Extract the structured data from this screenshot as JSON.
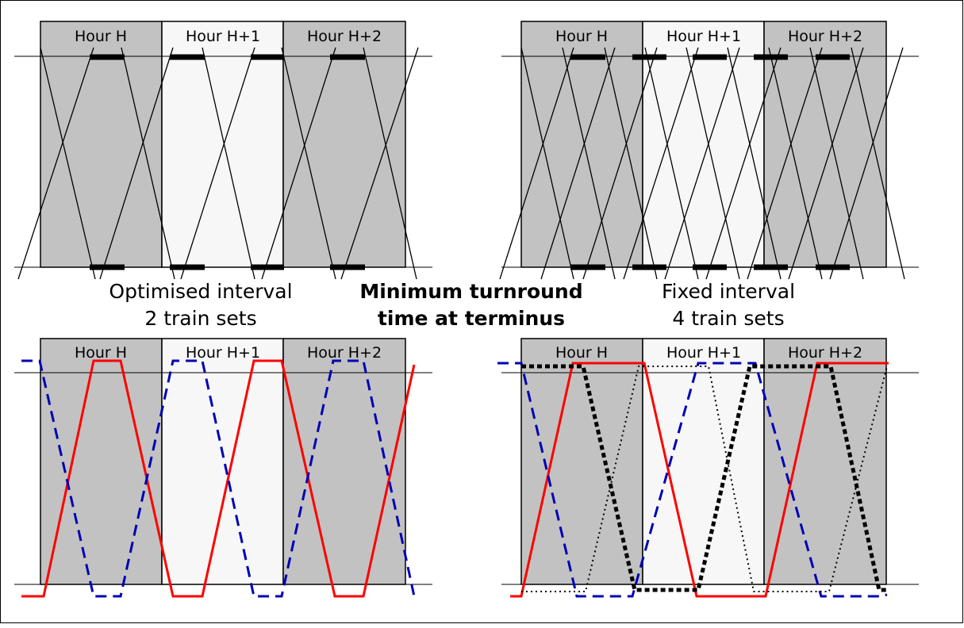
{
  "panels": [
    {
      "id": "top-left",
      "hours": [
        "Hour H",
        "Hour H+1",
        "Hour H+2"
      ]
    },
    {
      "id": "top-right",
      "hours": [
        "Hour H",
        "Hour H+1",
        "Hour H+2"
      ]
    },
    {
      "id": "bottom-left",
      "hours": [
        "Hour H",
        "Hour H+1",
        "Hour H+2"
      ]
    },
    {
      "id": "bottom-right",
      "hours": [
        "Hour H",
        "Hour H+1",
        "Hour H+2"
      ]
    }
  ],
  "captions": {
    "left_line1": "Optimised interval",
    "left_line2": "2 train sets",
    "center_line1": "Minimum turnround",
    "center_line2": "time at terminus",
    "right_line1": "Fixed interval",
    "right_line2": "4 train sets"
  },
  "colors": {
    "hour_dark": "#c2c2c2",
    "hour_light": "#f7f7f7",
    "train_red": "#ff0000",
    "train_blue": "#0000b4",
    "train_black": "#000000"
  }
}
